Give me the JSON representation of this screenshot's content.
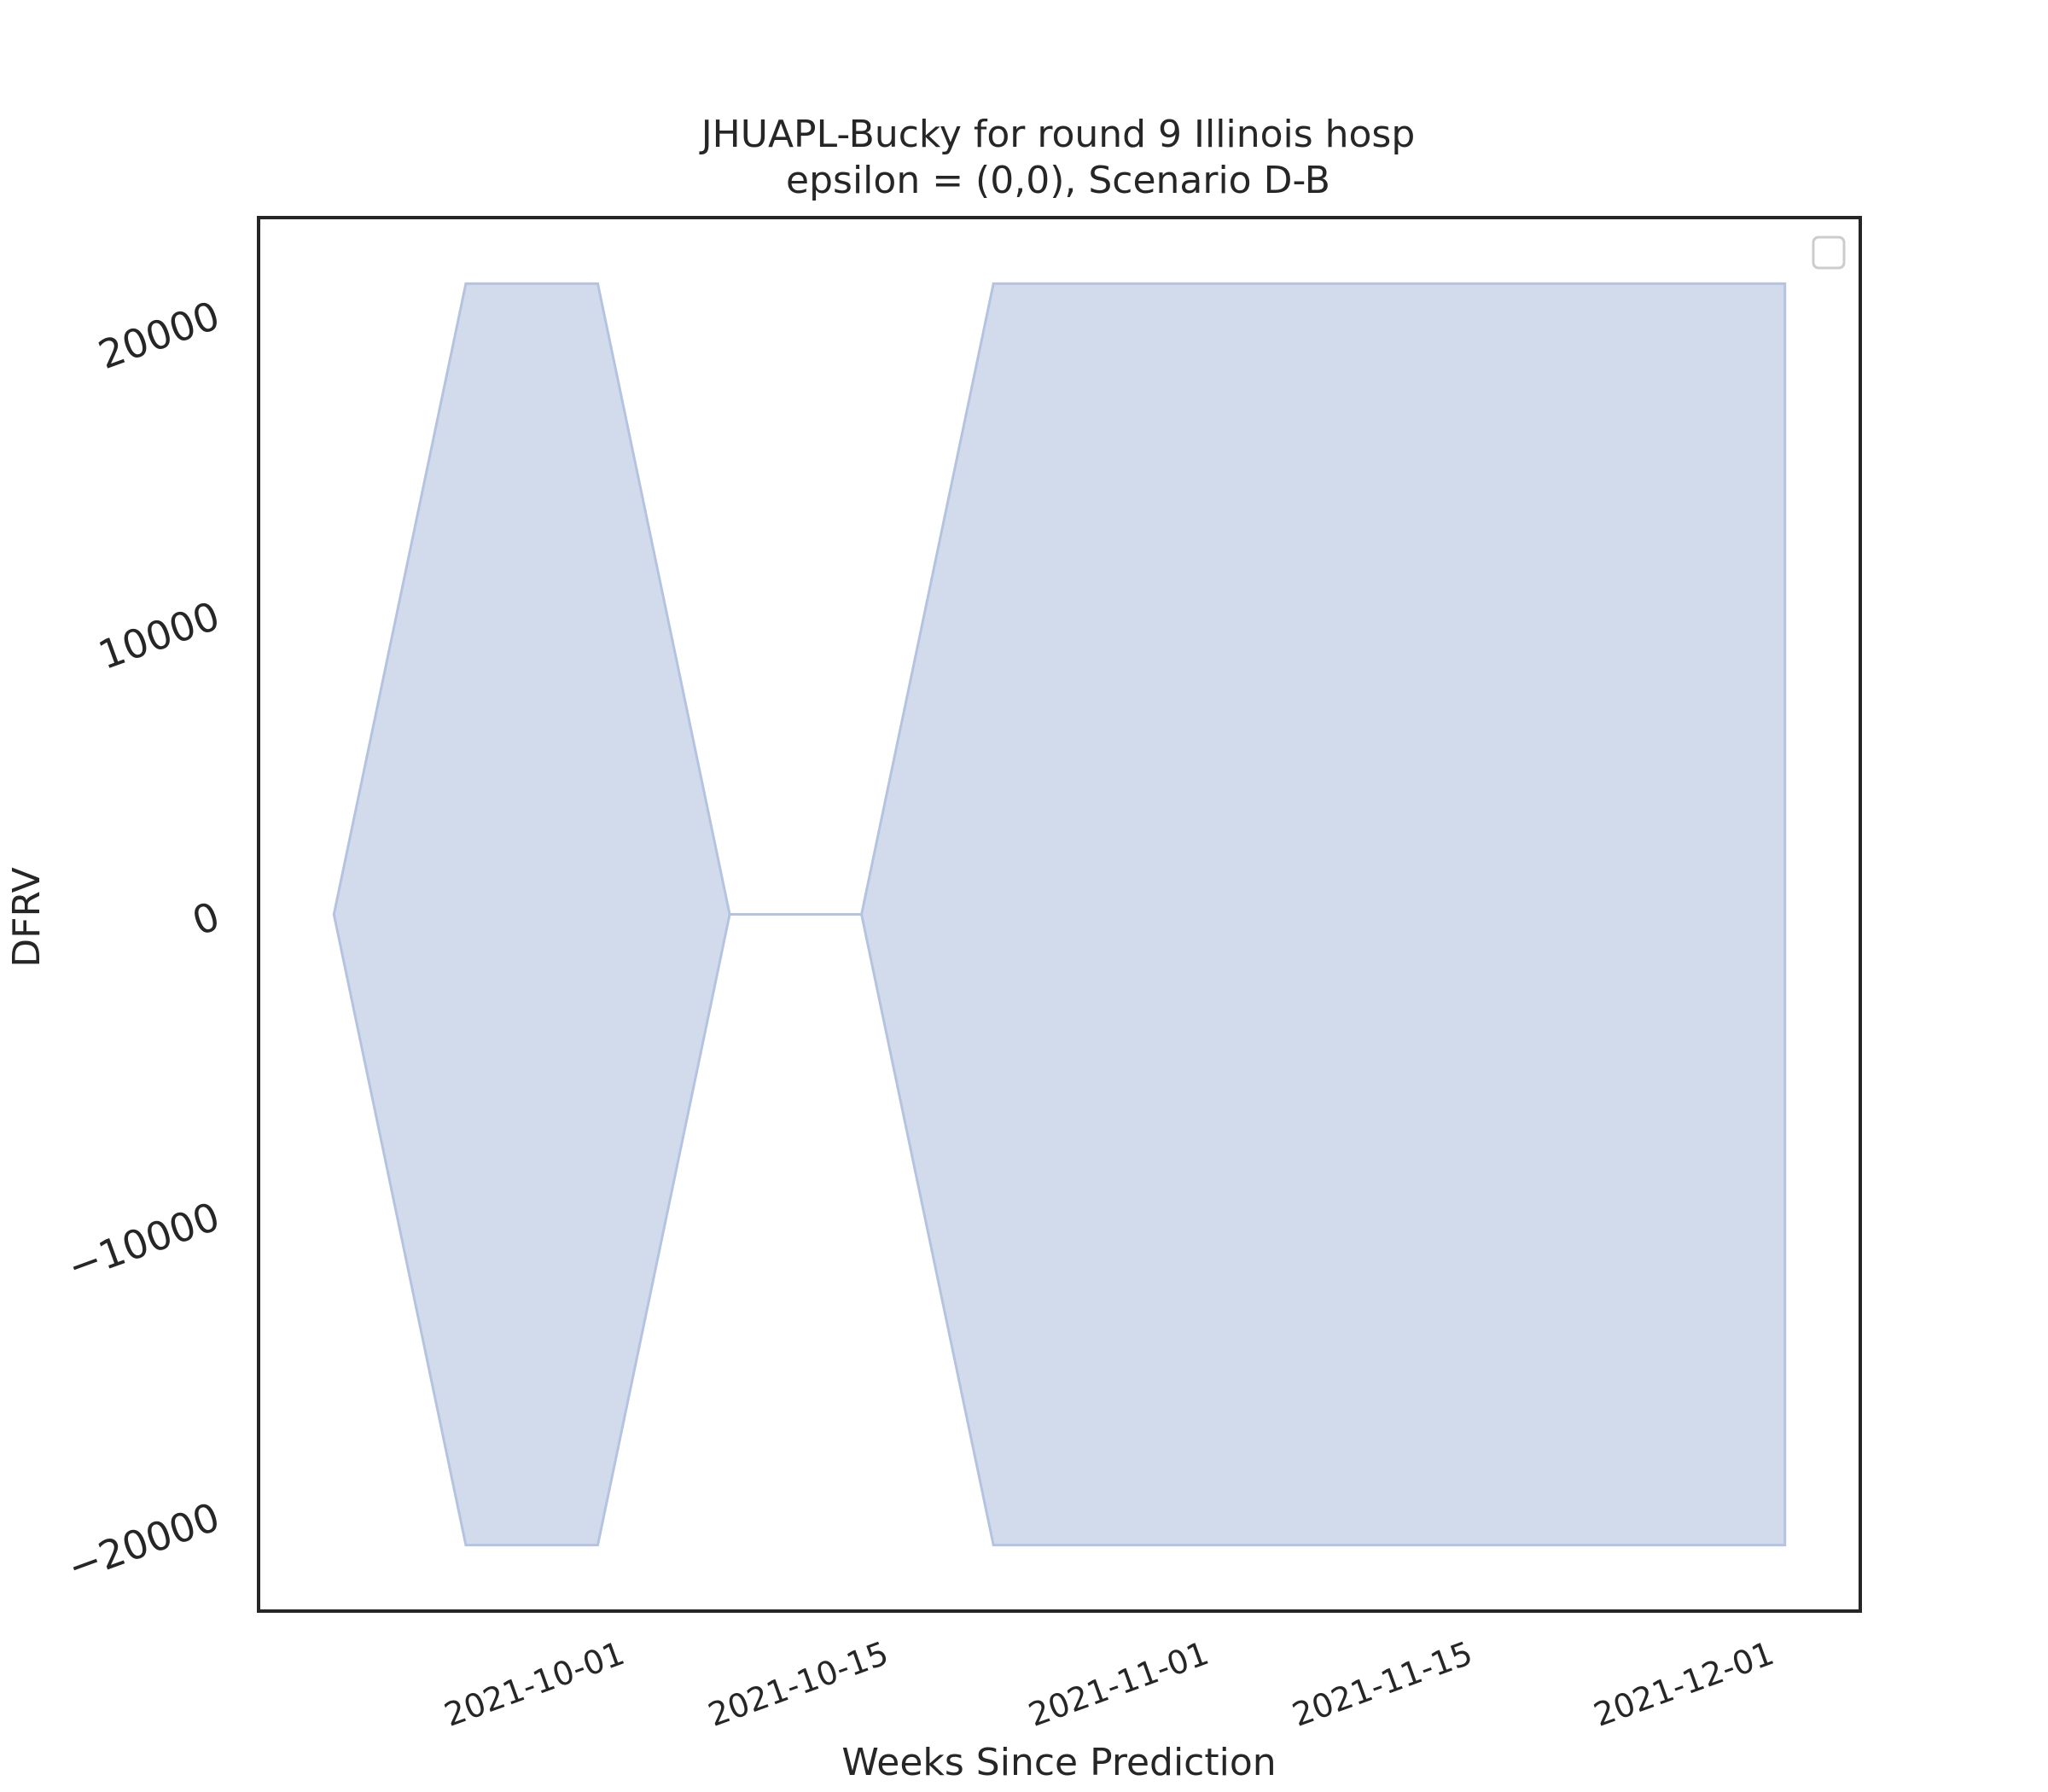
{
  "chart_data": {
    "type": "area",
    "title_line1": "JHUAPL-Bucky for round 9 Illinois hosp",
    "title_line2": "epsilon = (0,0), Scenario D-B",
    "xlabel": "Weeks Since Prediction",
    "ylabel": "DFRV",
    "x": [
      "2021-09-18",
      "2021-09-25",
      "2021-10-02",
      "2021-10-09",
      "2021-10-16",
      "2021-10-23",
      "2021-10-30",
      "2021-11-06",
      "2021-11-13",
      "2021-11-20",
      "2021-11-27",
      "2021-12-04"
    ],
    "upper": [
      0,
      21000,
      21000,
      0,
      0,
      21000,
      21000,
      21000,
      21000,
      21000,
      21000,
      21000
    ],
    "lower": [
      0,
      -21000,
      -21000,
      0,
      0,
      -21000,
      -21000,
      -21000,
      -21000,
      -21000,
      -21000,
      -21000
    ],
    "ylim": [
      -23200,
      23200
    ],
    "xlim": [
      "2021-09-14",
      "2021-12-08"
    ],
    "y_ticks": [
      -20000,
      -10000,
      0,
      10000,
      20000
    ],
    "y_tick_labels": [
      "−20000",
      "−10000",
      "0",
      "10000",
      "20000"
    ],
    "x_ticks": [
      "2021-10-01",
      "2021-10-15",
      "2021-11-01",
      "2021-11-15",
      "2021-12-01"
    ],
    "x_tick_labels": [
      "2021-10-01",
      "2021-10-15",
      "2021-11-01",
      "2021-11-15",
      "2021-12-01"
    ],
    "fill_color": "#d1dbec",
    "edge_color": "#b4c3e0",
    "grid": false,
    "legend": "top-right (empty)"
  }
}
